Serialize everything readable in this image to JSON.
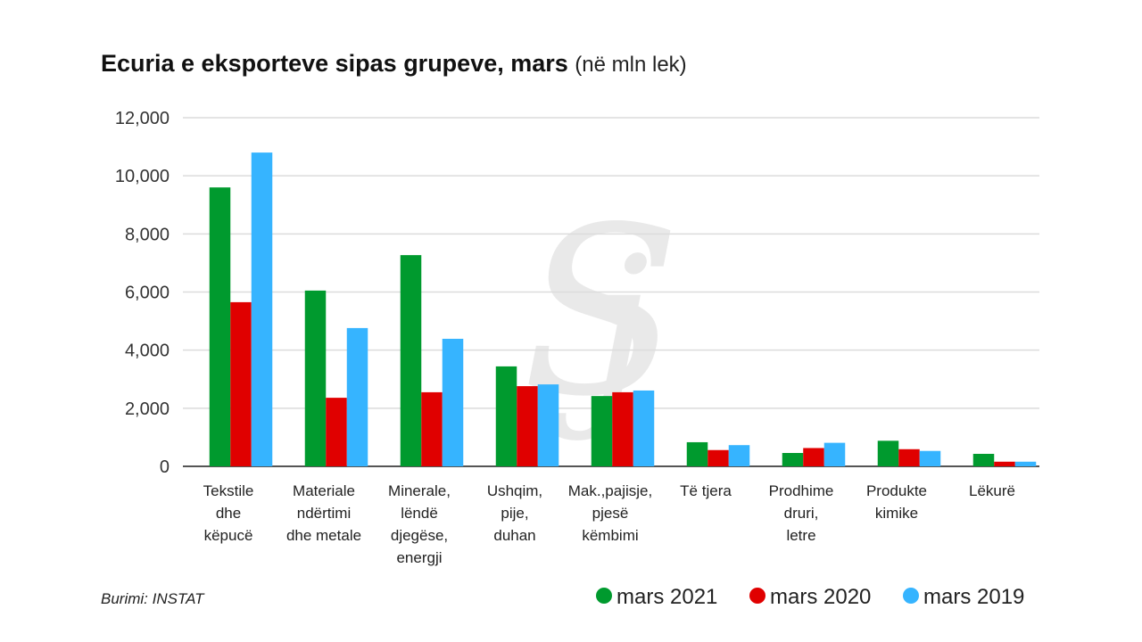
{
  "chart_data": {
    "type": "bar",
    "title": "Ecuria e eksporteve  sipas grupeve, mars",
    "subtitle": "(në mln lek)",
    "xlabel": "",
    "ylabel": "",
    "ylim": [
      0,
      12000
    ],
    "yticks": [
      0,
      2000,
      4000,
      6000,
      8000,
      10000,
      12000
    ],
    "ytick_labels": [
      "0",
      "2,000",
      "4,000",
      "6,000",
      "8,000",
      "10,000",
      "12,000"
    ],
    "grid": true,
    "legend_position": "bottom-right",
    "categories": [
      [
        "Tekstile",
        "dhe",
        "këpucë"
      ],
      [
        "Materiale",
        "ndërtimi",
        "dhe metale"
      ],
      [
        "Minerale,",
        "lëndë",
        "djegëse,",
        "energji"
      ],
      [
        "Ushqim,",
        "pije,",
        "duhan"
      ],
      [
        "Mak.,pajisje,",
        "pjesë",
        "këmbimi"
      ],
      [
        "Të tjera"
      ],
      [
        "Prodhime",
        "druri,",
        "letre"
      ],
      [
        "Produkte",
        "kimike"
      ],
      [
        "Lëkurë"
      ]
    ],
    "series": [
      {
        "name": "mars 2021",
        "color": "#009a2e",
        "values": [
          9600,
          6050,
          7270,
          3440,
          2420,
          830,
          460,
          880,
          430
        ]
      },
      {
        "name": "mars 2020",
        "color": "#e00000",
        "values": [
          5650,
          2360,
          2550,
          2760,
          2550,
          560,
          630,
          590,
          160
        ]
      },
      {
        "name": "mars 2019",
        "color": "#36b4ff",
        "values": [
          10800,
          4760,
          4390,
          2820,
          2610,
          730,
          810,
          530,
          160
        ]
      }
    ],
    "source": "Burimi: INSTAT"
  },
  "watermark": "Si"
}
